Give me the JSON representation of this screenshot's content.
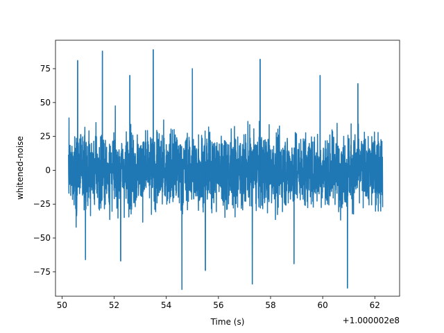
{
  "chart_data": {
    "type": "line",
    "title": "",
    "xlabel": "Time (s)",
    "ylabel": "whitened-noise",
    "x_offset_label": "+1.000002e8",
    "xlim": [
      49.75,
      62.95
    ],
    "ylim": [
      -93,
      96
    ],
    "x_start": 50.25,
    "x_end": 62.3,
    "x_ticks": [
      50,
      52,
      54,
      56,
      58,
      60,
      62
    ],
    "y_ticks": [
      -75,
      -50,
      -25,
      0,
      25,
      50,
      75
    ],
    "grid": false,
    "legend": "none",
    "series_color": "#1f77b4",
    "envelope": {
      "upper_typical": 42,
      "lower_typical": -42,
      "upper_frequent_max": 62,
      "lower_frequent_min": -62
    },
    "spikes": [
      {
        "x": 50.6,
        "y": 81
      },
      {
        "x": 51.55,
        "y": 88
      },
      {
        "x": 53.5,
        "y": 89
      },
      {
        "x": 57.6,
        "y": 82
      },
      {
        "x": 54.6,
        "y": -88
      },
      {
        "x": 60.95,
        "y": -87
      },
      {
        "x": 57.3,
        "y": -84
      },
      {
        "x": 52.25,
        "y": -67
      },
      {
        "x": 50.9,
        "y": -66
      },
      {
        "x": 58.9,
        "y": -69
      },
      {
        "x": 55.5,
        "y": -74
      },
      {
        "x": 55.0,
        "y": 75
      },
      {
        "x": 59.9,
        "y": 70
      },
      {
        "x": 52.6,
        "y": 70
      },
      {
        "x": 61.35,
        "y": 64
      }
    ]
  }
}
